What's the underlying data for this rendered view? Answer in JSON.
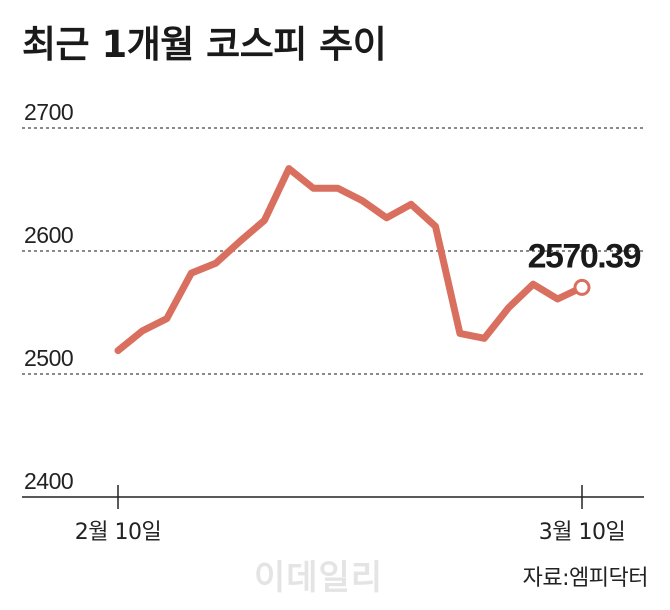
{
  "chart_data": {
    "type": "line",
    "title": "최근 1개월 코스피 추이",
    "source": "자료:엠피닥터",
    "watermark": "이데일리",
    "ylim": [
      2400,
      2700
    ],
    "yticks": [
      2700,
      2600,
      2500,
      2400
    ],
    "grid": true,
    "x_tick_labels": [
      {
        "index": 0,
        "label": "2월 10일"
      },
      {
        "index": 19,
        "label": "3월 10일"
      }
    ],
    "series": [
      {
        "values": [
          2519,
          2535,
          2545,
          2582,
          2590,
          2608,
          2625,
          2667,
          2651,
          2651,
          2641,
          2627,
          2638,
          2620,
          2533,
          2529,
          2554,
          2573,
          2561,
          2570.39
        ],
        "color": "#d96f5e"
      }
    ],
    "last_value_label": "2570.39"
  }
}
